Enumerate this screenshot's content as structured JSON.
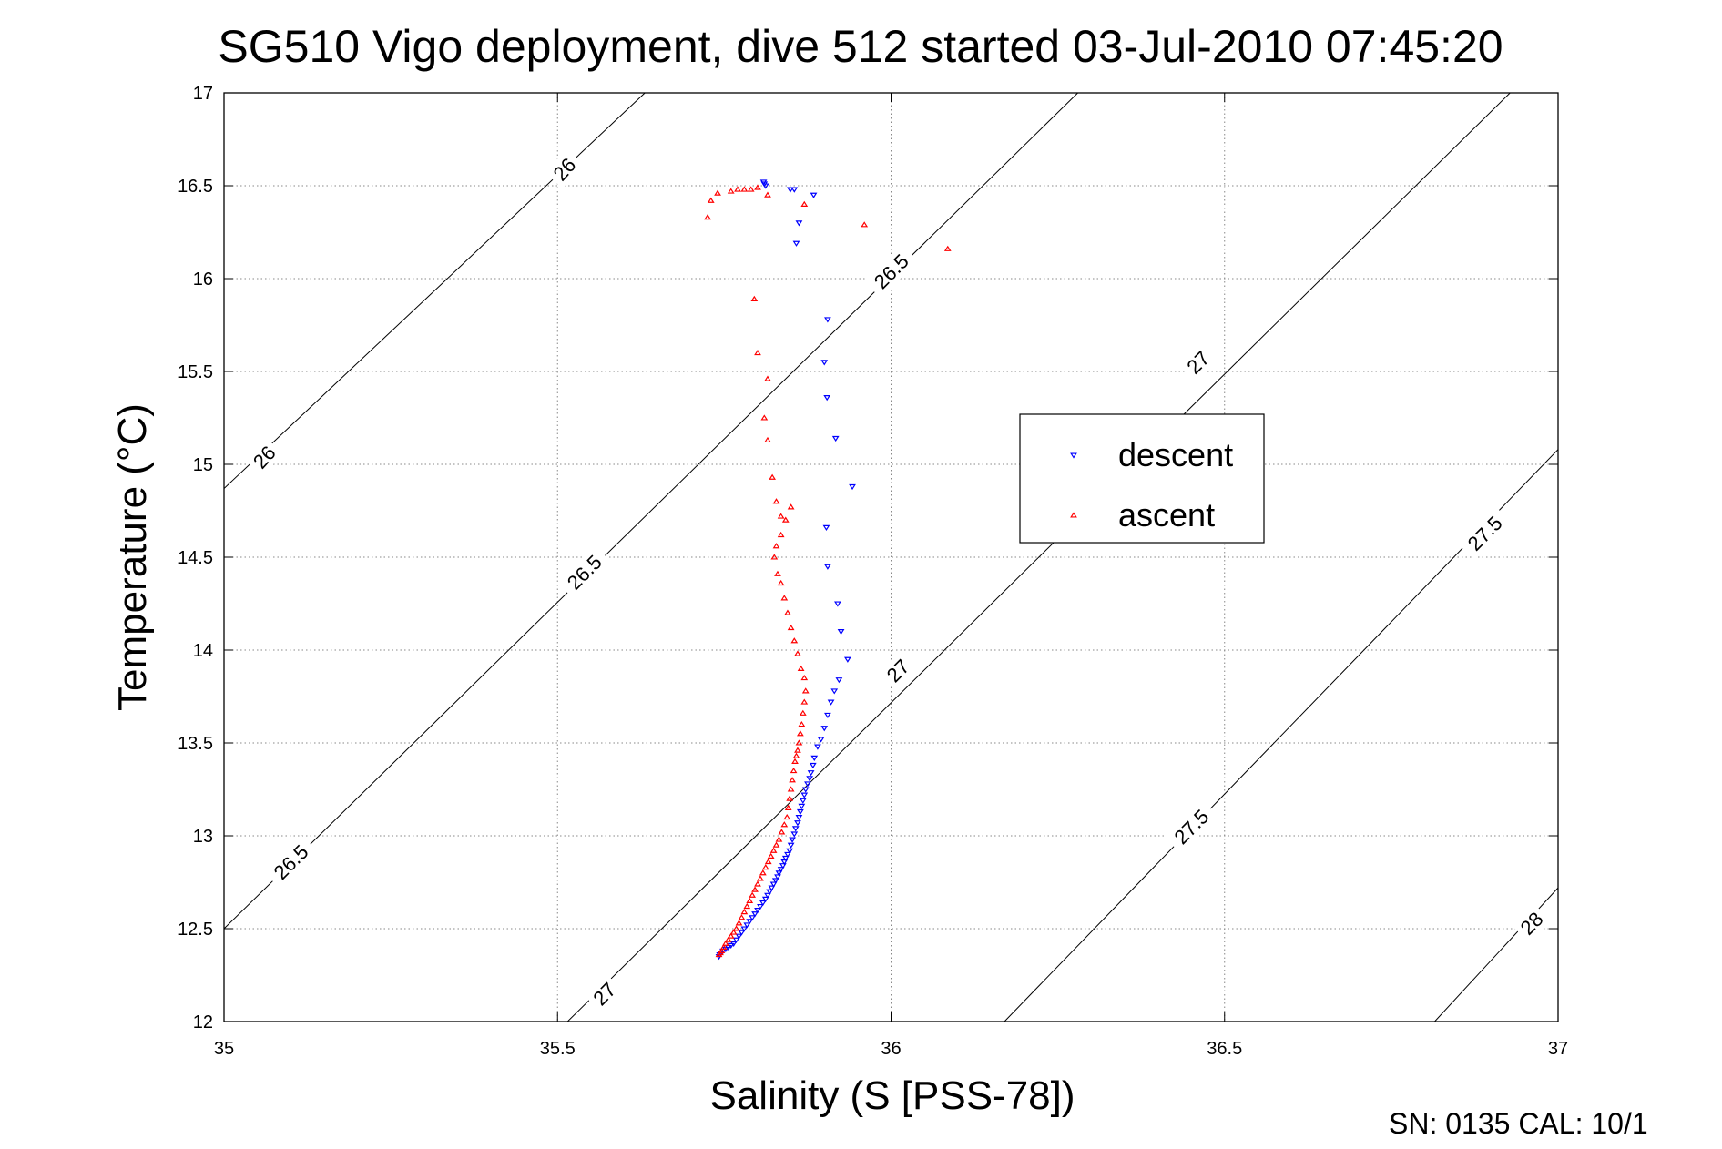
{
  "chart_data": {
    "type": "scatter",
    "title": "SG510 Vigo deployment, dive 512 started 03-Jul-2010 07:45:20",
    "xlabel": "Salinity (S [PSS-78])",
    "ylabel": "Temperature (°C)",
    "xlim": [
      35,
      37
    ],
    "ylim": [
      12,
      17
    ],
    "x_ticks": [
      "35",
      "35.5",
      "36",
      "36.5",
      "37"
    ],
    "y_ticks": [
      "12",
      "12.5",
      "13",
      "13.5",
      "14",
      "14.5",
      "15",
      "15.5",
      "16",
      "16.5",
      "17"
    ],
    "grid": true,
    "legend_position": "center-right",
    "footer": "SN: 0135  CAL: 10/1",
    "contours": [
      {
        "level": 26,
        "label": "26",
        "points": [
          [
            35.0,
            14.87
          ],
          [
            35.631,
            17.0
          ]
        ]
      },
      {
        "level": 26.5,
        "label": "26.5",
        "points": [
          [
            35.0,
            12.5
          ],
          [
            36.28,
            17.0
          ]
        ]
      },
      {
        "level": 27,
        "label": "27",
        "points": [
          [
            35.515,
            12.0
          ],
          [
            36.928,
            17.0
          ]
        ]
      },
      {
        "level": 27.5,
        "label": "27.5",
        "points": [
          [
            36.17,
            12.0
          ],
          [
            37.0,
            15.08
          ]
        ]
      },
      {
        "level": 28,
        "label": "28",
        "points": [
          [
            36.815,
            12.0
          ],
          [
            37.0,
            12.72
          ]
        ]
      }
    ],
    "contour_label_positions": [
      {
        "label": "26",
        "x": 35.51,
        "y": 16.59,
        "angle": -48
      },
      {
        "label": "26",
        "x": 35.06,
        "y": 15.04,
        "angle": -48
      },
      {
        "label": "26.5",
        "x": 36.0,
        "y": 16.04,
        "angle": -45
      },
      {
        "label": "26.5",
        "x": 35.54,
        "y": 14.42,
        "angle": -45
      },
      {
        "label": "26.5",
        "x": 35.1,
        "y": 12.86,
        "angle": -45
      },
      {
        "label": "27",
        "x": 36.46,
        "y": 15.55,
        "angle": -45
      },
      {
        "label": "27",
        "x": 36.01,
        "y": 13.89,
        "angle": -45
      },
      {
        "label": "27",
        "x": 35.57,
        "y": 12.15,
        "angle": -45
      },
      {
        "label": "27.5",
        "x": 36.89,
        "y": 14.63,
        "angle": -45
      },
      {
        "label": "27.5",
        "x": 36.45,
        "y": 13.05,
        "angle": -45
      },
      {
        "label": "28",
        "x": 36.96,
        "y": 12.53,
        "angle": -45
      }
    ],
    "series": [
      {
        "name": "descent",
        "color": "#0000ff",
        "marker": "triangle-down",
        "x": [
          35.809,
          35.81,
          35.812,
          35.849,
          35.855,
          35.884,
          35.862,
          35.858,
          35.905,
          35.9,
          35.904,
          35.917,
          35.942,
          35.903,
          35.905,
          35.92,
          35.925,
          35.935,
          35.922,
          35.915,
          35.91,
          35.905,
          35.9,
          35.895,
          35.89,
          35.885,
          35.883,
          35.88,
          35.878,
          35.875,
          35.872,
          35.87,
          35.868,
          35.866,
          35.864,
          35.862,
          35.86,
          35.857,
          35.855,
          35.852,
          35.85,
          35.848,
          35.845,
          35.842,
          35.84,
          35.838,
          35.835,
          35.832,
          35.83,
          35.827,
          35.824,
          35.821,
          35.818,
          35.815,
          35.812,
          35.808,
          35.804,
          35.8,
          35.796,
          35.792,
          35.788,
          35.784,
          35.78,
          35.776,
          35.772,
          35.768,
          35.764,
          35.76,
          35.756,
          35.752,
          35.748,
          35.745,
          35.743,
          35.742
        ],
        "y": [
          16.52,
          16.51,
          16.5,
          16.48,
          16.48,
          16.45,
          16.3,
          16.19,
          15.78,
          15.55,
          15.36,
          15.14,
          14.88,
          14.66,
          14.45,
          14.25,
          14.1,
          13.95,
          13.84,
          13.78,
          13.72,
          13.65,
          13.58,
          13.52,
          13.48,
          13.42,
          13.38,
          13.34,
          13.31,
          13.28,
          13.25,
          13.22,
          13.19,
          13.16,
          13.13,
          13.1,
          13.07,
          13.04,
          13.01,
          12.98,
          12.95,
          12.92,
          12.9,
          12.88,
          12.86,
          12.84,
          12.82,
          12.8,
          12.78,
          12.76,
          12.74,
          12.72,
          12.7,
          12.68,
          12.66,
          12.64,
          12.62,
          12.6,
          12.58,
          12.56,
          12.54,
          12.52,
          12.5,
          12.48,
          12.46,
          12.44,
          12.42,
          12.41,
          12.4,
          12.39,
          12.38,
          12.37,
          12.36,
          12.35
        ]
      },
      {
        "name": "ascent",
        "color": "#ff0000",
        "marker": "triangle-up",
        "x": [
          35.725,
          35.73,
          35.74,
          35.76,
          35.77,
          35.78,
          35.79,
          35.8,
          35.815,
          35.87,
          35.96,
          36.085,
          35.795,
          35.8,
          35.815,
          35.81,
          35.815,
          35.822,
          35.828,
          35.835,
          35.842,
          35.85,
          35.835,
          35.828,
          35.825,
          35.83,
          35.835,
          35.84,
          35.845,
          35.85,
          35.855,
          35.86,
          35.865,
          35.87,
          35.872,
          35.87,
          35.868,
          35.866,
          35.864,
          35.862,
          35.86,
          35.858,
          35.856,
          35.854,
          35.852,
          35.85,
          35.848,
          35.846,
          35.844,
          35.84,
          35.836,
          35.832,
          35.828,
          35.824,
          35.82,
          35.816,
          35.812,
          35.808,
          35.804,
          35.8,
          35.796,
          35.792,
          35.788,
          35.784,
          35.78,
          35.776,
          35.772,
          35.768,
          35.764,
          35.76,
          35.756,
          35.752,
          35.749,
          35.746,
          35.744,
          35.742
        ],
        "y": [
          16.33,
          16.42,
          16.46,
          16.47,
          16.48,
          16.48,
          16.48,
          16.49,
          16.45,
          16.4,
          16.29,
          16.16,
          15.89,
          15.6,
          15.46,
          15.25,
          15.13,
          14.93,
          14.8,
          14.72,
          14.7,
          14.77,
          14.62,
          14.56,
          14.5,
          14.41,
          14.36,
          14.28,
          14.2,
          14.12,
          14.05,
          13.98,
          13.9,
          13.85,
          13.78,
          13.72,
          13.66,
          13.6,
          13.55,
          13.5,
          13.46,
          13.43,
          13.4,
          13.35,
          13.3,
          13.25,
          13.2,
          13.15,
          13.1,
          13.06,
          13.02,
          12.98,
          12.95,
          12.92,
          12.89,
          12.86,
          12.83,
          12.8,
          12.77,
          12.74,
          12.71,
          12.68,
          12.65,
          12.62,
          12.59,
          12.56,
          12.53,
          12.5,
          12.48,
          12.46,
          12.44,
          12.42,
          12.4,
          12.38,
          12.37,
          12.36
        ]
      }
    ]
  }
}
